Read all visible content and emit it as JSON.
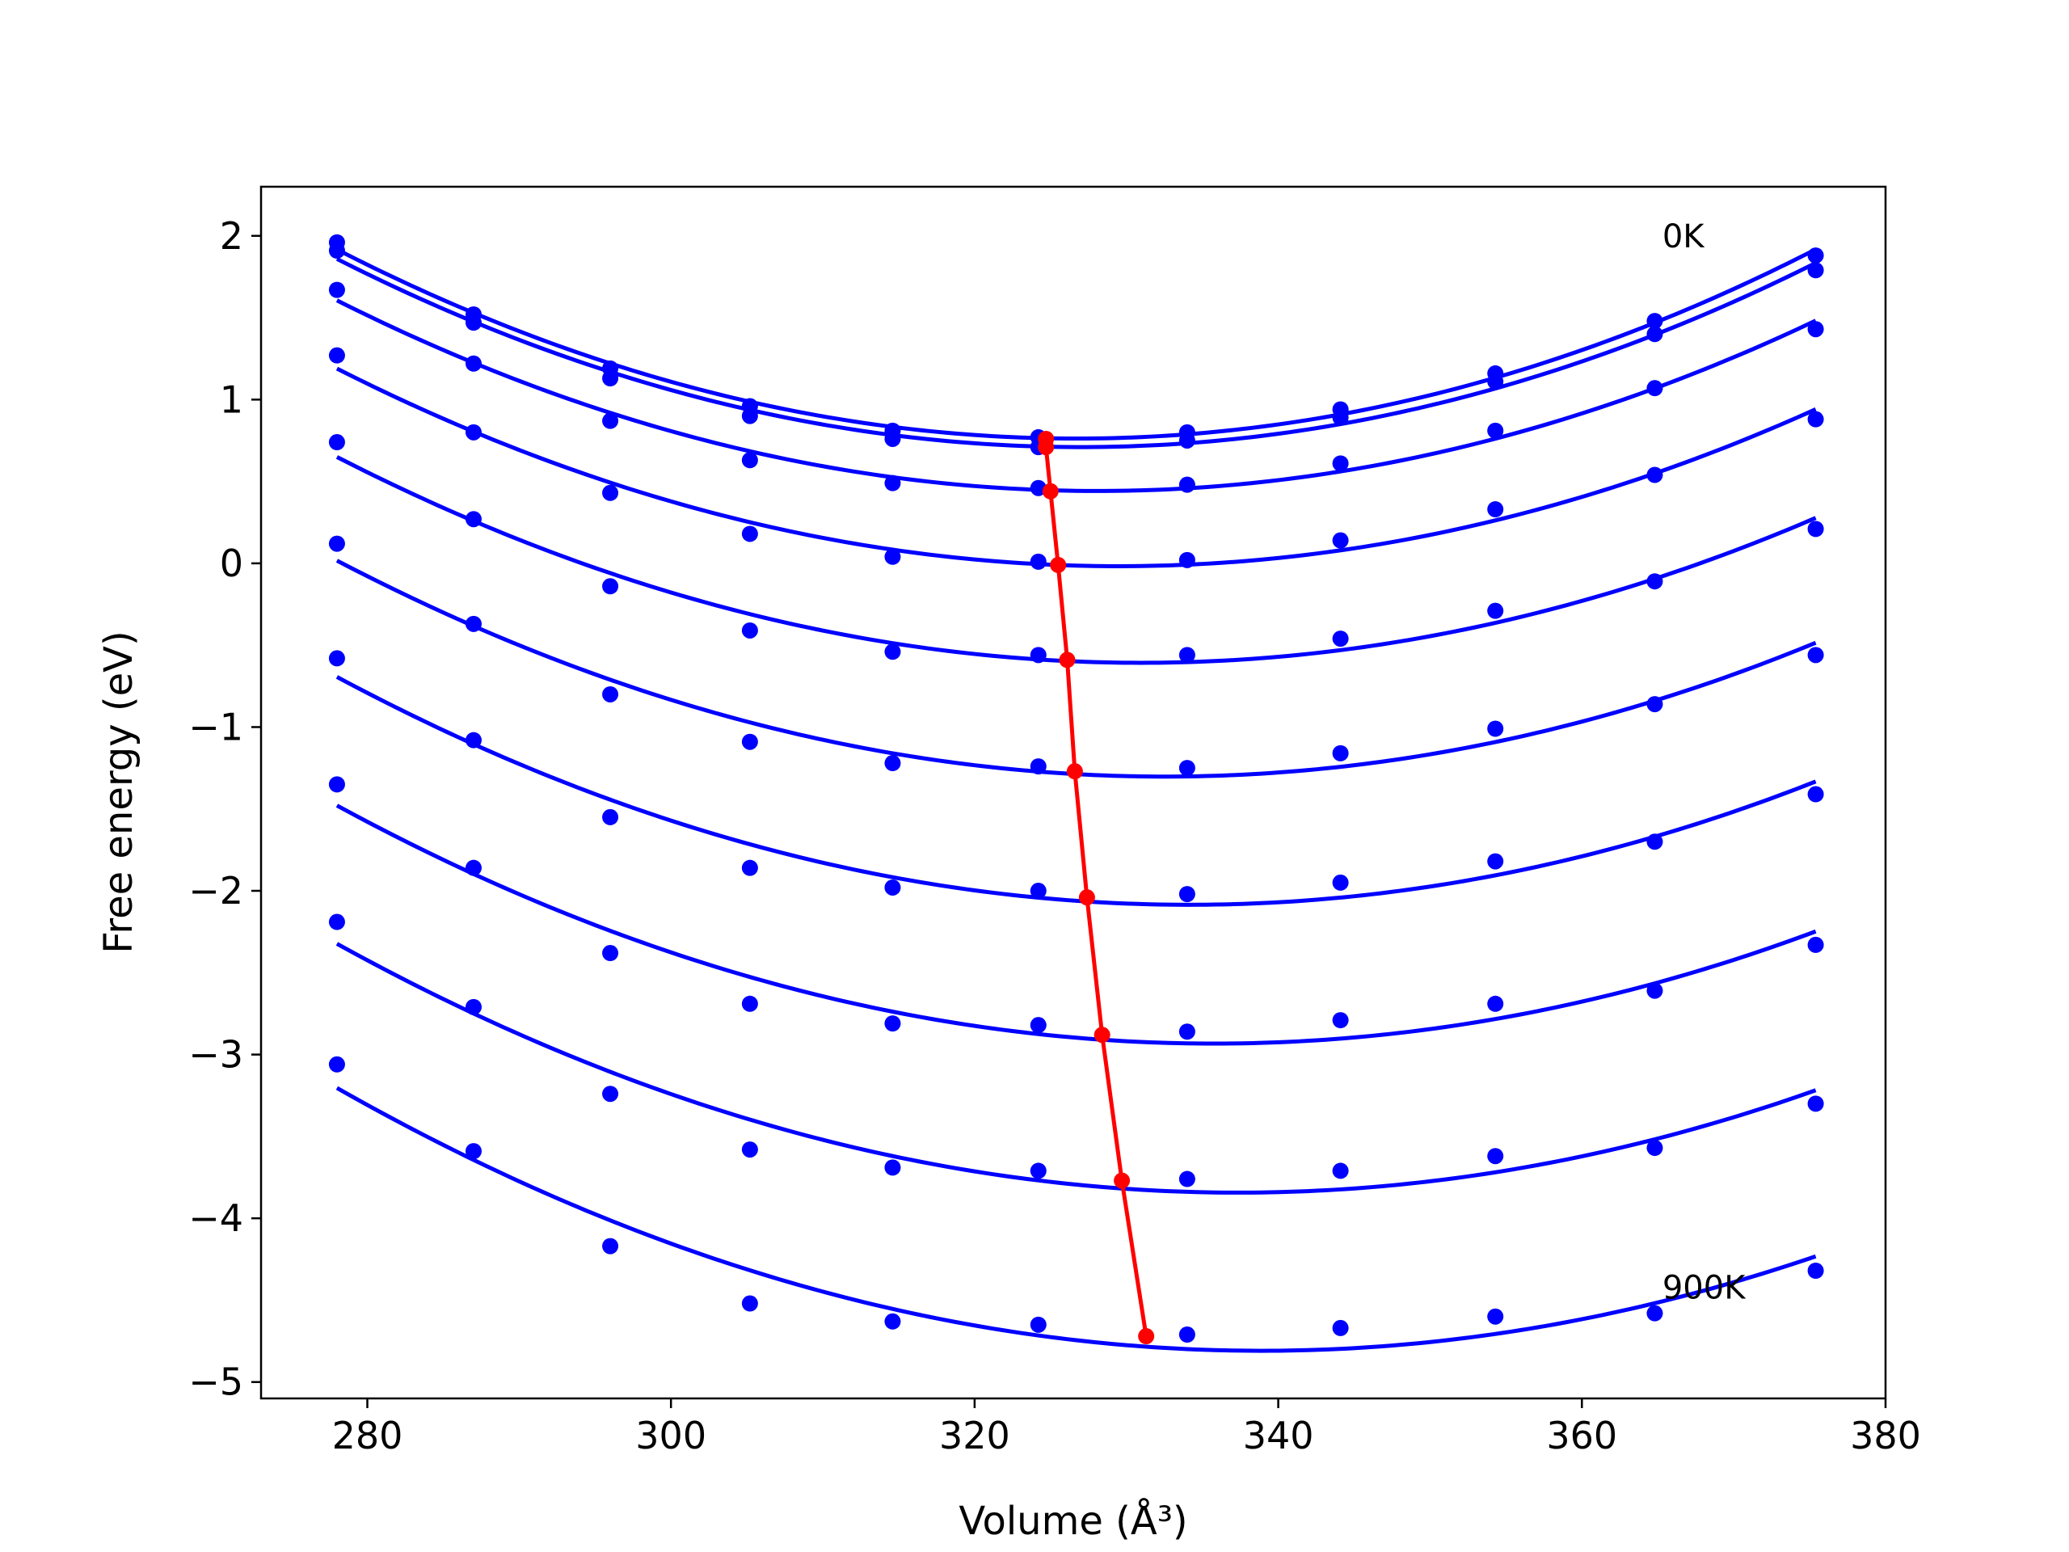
{
  "chart_data": {
    "type": "line",
    "title": "",
    "xlabel": "Volume (Å³)",
    "ylabel": "Free energy (eV)",
    "xlim": [
      273,
      380
    ],
    "ylim": [
      -5.1,
      2.3
    ],
    "grid": false,
    "x_ticks": [
      280,
      300,
      320,
      340,
      360,
      380
    ],
    "y_ticks": [
      -5,
      -4,
      -3,
      -2,
      -1,
      0,
      1,
      2
    ],
    "x_tick_labels": [
      "280",
      "300",
      "320",
      "340",
      "360",
      "380"
    ],
    "y_tick_labels": [
      "−5",
      "−4",
      "−3",
      "−2",
      "−1",
      "0",
      "1",
      "2"
    ],
    "volumes": [
      278.0,
      287.0,
      296.0,
      305.2,
      314.6,
      324.2,
      334.0,
      344.1,
      354.3,
      364.8,
      375.4
    ],
    "series": [
      {
        "points": [
          1.96,
          1.52,
          1.19,
          0.96,
          0.81,
          0.77,
          0.8,
          0.94,
          1.16,
          1.48,
          1.88
        ],
        "fit_min": {
          "x": 324.7,
          "y": 0.76
        }
      },
      {
        "points": [
          1.91,
          1.47,
          1.13,
          0.9,
          0.76,
          0.71,
          0.75,
          0.89,
          1.11,
          1.4,
          1.79
        ],
        "fit_min": {
          "x": 324.7,
          "y": 0.71
        }
      },
      {
        "points": [
          1.67,
          1.22,
          0.87,
          0.63,
          0.49,
          0.46,
          0.48,
          0.61,
          0.81,
          1.07,
          1.43
        ],
        "fit_min": {
          "x": 325.0,
          "y": 0.44
        }
      },
      {
        "points": [
          1.27,
          0.8,
          0.43,
          0.18,
          0.04,
          0.01,
          0.02,
          0.14,
          0.33,
          0.54,
          0.88
        ],
        "fit_min": {
          "x": 325.5,
          "y": -0.01
        }
      },
      {
        "points": [
          0.74,
          0.27,
          -0.14,
          -0.41,
          -0.54,
          -0.56,
          -0.56,
          -0.46,
          -0.29,
          -0.11,
          0.21
        ],
        "fit_min": {
          "x": 326.1,
          "y": -0.59
        }
      },
      {
        "points": [
          0.12,
          -0.37,
          -0.8,
          -1.09,
          -1.22,
          -1.24,
          -1.25,
          -1.16,
          -1.01,
          -0.86,
          -0.56
        ],
        "fit_min": {
          "x": 326.6,
          "y": -1.27
        }
      },
      {
        "points": [
          -0.58,
          -1.08,
          -1.55,
          -1.86,
          -1.98,
          -2.0,
          -2.02,
          -1.95,
          -1.82,
          -1.7,
          -1.41
        ],
        "fit_min": {
          "x": 327.4,
          "y": -2.04
        }
      },
      {
        "points": [
          -1.35,
          -1.86,
          -2.38,
          -2.69,
          -2.81,
          -2.82,
          -2.86,
          -2.79,
          -2.69,
          -2.61,
          -2.33
        ],
        "fit_min": {
          "x": 328.4,
          "y": -2.88
        }
      },
      {
        "points": [
          -2.19,
          -2.71,
          -3.24,
          -3.58,
          -3.69,
          -3.71,
          -3.76,
          -3.71,
          -3.62,
          -3.57,
          -3.3
        ],
        "fit_min": {
          "x": 329.7,
          "y": -3.77
        }
      },
      {
        "points": [
          -3.06,
          -3.59,
          -4.17,
          -4.52,
          -4.63,
          -4.65,
          -4.71,
          -4.67,
          -4.6,
          -4.58,
          -4.32
        ],
        "fit_min": {
          "x": 331.3,
          "y": -4.72
        }
      }
    ],
    "annotations": [
      {
        "text": "0K",
        "x": 365.3,
        "y": 2.0
      },
      {
        "text": "900K",
        "x": 365.3,
        "y": -4.42
      }
    ],
    "colors": {
      "fits": "#0000ff",
      "minimum_line": "#ff0000",
      "axes": "#000000"
    }
  }
}
